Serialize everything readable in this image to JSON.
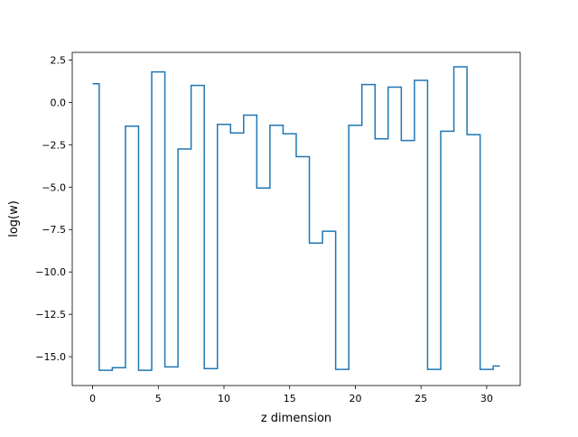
{
  "chart_data": {
    "type": "line",
    "drawstyle": "steps-mid",
    "xlabel": "z dimension",
    "ylabel": "log(w)",
    "xlim": [
      -1.55,
      32.55
    ],
    "ylim": [
      -16.7,
      2.95
    ],
    "x_ticks": [
      {
        "value": 0,
        "label": "0"
      },
      {
        "value": 5,
        "label": "5"
      },
      {
        "value": 10,
        "label": "10"
      },
      {
        "value": 15,
        "label": "15"
      },
      {
        "value": 20,
        "label": "20"
      },
      {
        "value": 25,
        "label": "25"
      },
      {
        "value": 30,
        "label": "30"
      }
    ],
    "y_ticks": [
      {
        "value": 2.5,
        "label": "2.5"
      },
      {
        "value": 0,
        "label": "0.0"
      },
      {
        "value": -2.5,
        "label": "−2.5"
      },
      {
        "value": -5,
        "label": "−5.0"
      },
      {
        "value": -7.5,
        "label": "−7.5"
      },
      {
        "value": -10,
        "label": "−10.0"
      },
      {
        "value": -12.5,
        "label": "−12.5"
      },
      {
        "value": -15,
        "label": "−15.0"
      }
    ],
    "grid": false,
    "series": [
      {
        "color": "#1f77b4",
        "x": [
          0,
          1,
          2,
          3,
          4,
          5,
          6,
          7,
          8,
          9,
          10,
          11,
          12,
          13,
          14,
          15,
          16,
          17,
          18,
          19,
          20,
          21,
          22,
          23,
          24,
          25,
          26,
          27,
          28,
          29,
          30,
          31
        ],
        "y": [
          1.1,
          -15.8,
          -15.65,
          -1.4,
          -15.8,
          1.8,
          -15.6,
          -2.75,
          1.0,
          -15.7,
          -1.3,
          -1.8,
          -0.75,
          -5.05,
          -1.35,
          -1.85,
          -3.2,
          -8.3,
          -7.6,
          -15.75,
          -1.35,
          1.05,
          -2.15,
          0.9,
          -2.25,
          1.3,
          -15.75,
          -1.7,
          2.1,
          -1.9,
          -15.75,
          -15.55
        ]
      }
    ]
  }
}
